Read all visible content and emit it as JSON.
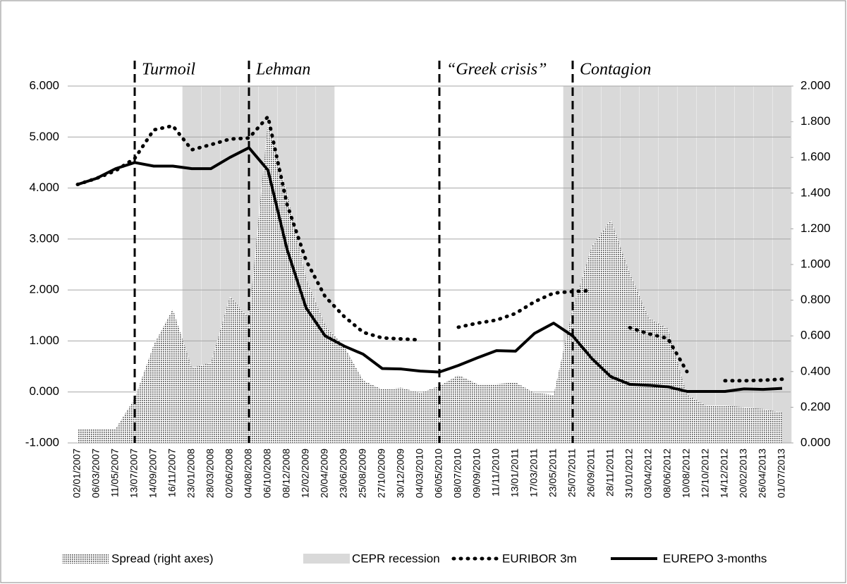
{
  "chart_data": {
    "type": "line",
    "categories": [
      "02/01/2007",
      "06/03/2007",
      "11/05/2007",
      "13/07/2007",
      "14/09/2007",
      "16/11/2007",
      "23/01/2008",
      "28/03/2008",
      "02/06/2008",
      "04/08/2008",
      "06/10/2008",
      "08/12/2008",
      "12/02/2009",
      "20/04/2009",
      "23/06/2009",
      "25/08/2009",
      "27/10/2009",
      "30/12/2009",
      "04/03/2010",
      "06/05/2010",
      "08/07/2010",
      "09/09/2010",
      "11/11/2010",
      "13/01/2011",
      "17/03/2011",
      "23/05/2011",
      "25/07/2011",
      "26/09/2011",
      "28/11/2011",
      "31/01/2012",
      "03/04/2012",
      "08/06/2012",
      "10/08/2012",
      "12/10/2012",
      "14/12/2012",
      "20/02/2013",
      "26/04/2013",
      "01/07/2013"
    ],
    "series": [
      {
        "name": "Spread (right axes)",
        "kind": "area",
        "axis": "y2",
        "color": "#555555",
        "values": [
          0.08,
          0.08,
          0.08,
          0.25,
          0.55,
          0.75,
          0.42,
          0.45,
          0.82,
          0.7,
          1.8,
          1.4,
          0.92,
          0.66,
          0.54,
          0.35,
          0.3,
          0.31,
          0.28,
          0.32,
          0.38,
          0.33,
          0.33,
          0.34,
          0.28,
          0.27,
          0.75,
          1.1,
          1.25,
          0.95,
          0.7,
          0.64,
          0.27,
          0.21,
          0.21,
          0.2,
          0.19,
          0.17
        ]
      },
      {
        "name": "CEPR recession",
        "kind": "band",
        "color": "#d9d9d9",
        "values": [
          null,
          null,
          null,
          null,
          null,
          null,
          6,
          6,
          6,
          6,
          6,
          6,
          6,
          6,
          null,
          null,
          null,
          null,
          null,
          null,
          null,
          null,
          null,
          null,
          null,
          null,
          6,
          6,
          6,
          6,
          6,
          6,
          6,
          6,
          6,
          6,
          6,
          6
        ]
      },
      {
        "name": "EURIBOR 3m",
        "kind": "dotted",
        "color": "#000000",
        "values": [
          4.07,
          4.19,
          4.34,
          4.58,
          5.14,
          5.22,
          4.75,
          4.85,
          4.96,
          4.98,
          5.4,
          3.68,
          2.58,
          1.87,
          1.48,
          1.17,
          1.06,
          1.04,
          1.02,
          null,
          1.27,
          1.35,
          1.41,
          1.54,
          1.77,
          1.94,
          1.97,
          1.99,
          null,
          1.26,
          1.14,
          1.05,
          0.4,
          null,
          0.22,
          0.22,
          0.23,
          0.25
        ]
      },
      {
        "name": "EUREPO 3-months",
        "kind": "solid",
        "color": "#000000",
        "values": [
          4.07,
          4.19,
          4.38,
          4.5,
          4.43,
          4.43,
          4.38,
          4.38,
          4.6,
          4.79,
          4.35,
          2.8,
          1.65,
          1.1,
          0.9,
          0.74,
          0.46,
          0.45,
          0.41,
          0.39,
          0.52,
          0.67,
          0.81,
          0.8,
          1.15,
          1.35,
          1.1,
          0.66,
          0.3,
          0.15,
          0.13,
          0.1,
          0.01,
          0.01,
          0.01,
          0.06,
          0.05,
          0.07
        ]
      }
    ],
    "ylim": [
      -1,
      6
    ],
    "yticks": [
      {
        "value": -1,
        "label": "-1.000"
      },
      {
        "value": 0,
        "label": "0.000"
      },
      {
        "value": 1,
        "label": "1.000"
      },
      {
        "value": 2,
        "label": "2.000"
      },
      {
        "value": 3,
        "label": "3.000"
      },
      {
        "value": 4,
        "label": "4.000"
      },
      {
        "value": 5,
        "label": "5.000"
      },
      {
        "value": 6,
        "label": "6.000"
      }
    ],
    "y2lim": [
      0,
      2
    ],
    "y2ticks": [
      {
        "value": 0,
        "label": "0.000"
      },
      {
        "value": 0.2,
        "label": "0.200"
      },
      {
        "value": 0.4,
        "label": "0.400"
      },
      {
        "value": 0.6,
        "label": "0.600"
      },
      {
        "value": 0.8,
        "label": "0.800"
      },
      {
        "value": 1,
        "label": "1.000"
      },
      {
        "value": 1.2,
        "label": "1.200"
      },
      {
        "value": 1.4,
        "label": "1.400"
      },
      {
        "value": 1.6,
        "label": "1.600"
      },
      {
        "value": 1.8,
        "label": "1.800"
      },
      {
        "value": 2,
        "label": "2.000"
      }
    ],
    "annotations": [
      {
        "text": "Turmoil",
        "category": "13/07/2007"
      },
      {
        "text": "Lehman",
        "category": "04/08/2008"
      },
      {
        "text": "“Greek crisis”",
        "category": "06/05/2010"
      },
      {
        "text": "Contagion",
        "category": "25/07/2011"
      }
    ],
    "grid": true,
    "legend": "bottom"
  }
}
